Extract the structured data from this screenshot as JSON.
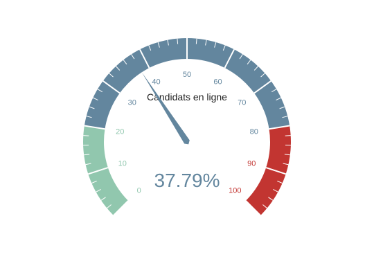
{
  "chart_data": {
    "type": "gauge",
    "title": "Candidats en ligne",
    "value": 37.79,
    "value_label": "37.79%",
    "min": 0,
    "max": 100,
    "tick_labels": [
      "0",
      "10",
      "20",
      "30",
      "40",
      "50",
      "60",
      "70",
      "80",
      "90",
      "100"
    ],
    "ranges": [
      {
        "from": 0,
        "to": 20,
        "color": "#91c7ae"
      },
      {
        "from": 20,
        "to": 80,
        "color": "#63869e"
      },
      {
        "from": 80,
        "to": 100,
        "color": "#c23531"
      }
    ],
    "pointer_color": "#63869e",
    "value_color": "#63869e",
    "title_color": "#222222"
  }
}
